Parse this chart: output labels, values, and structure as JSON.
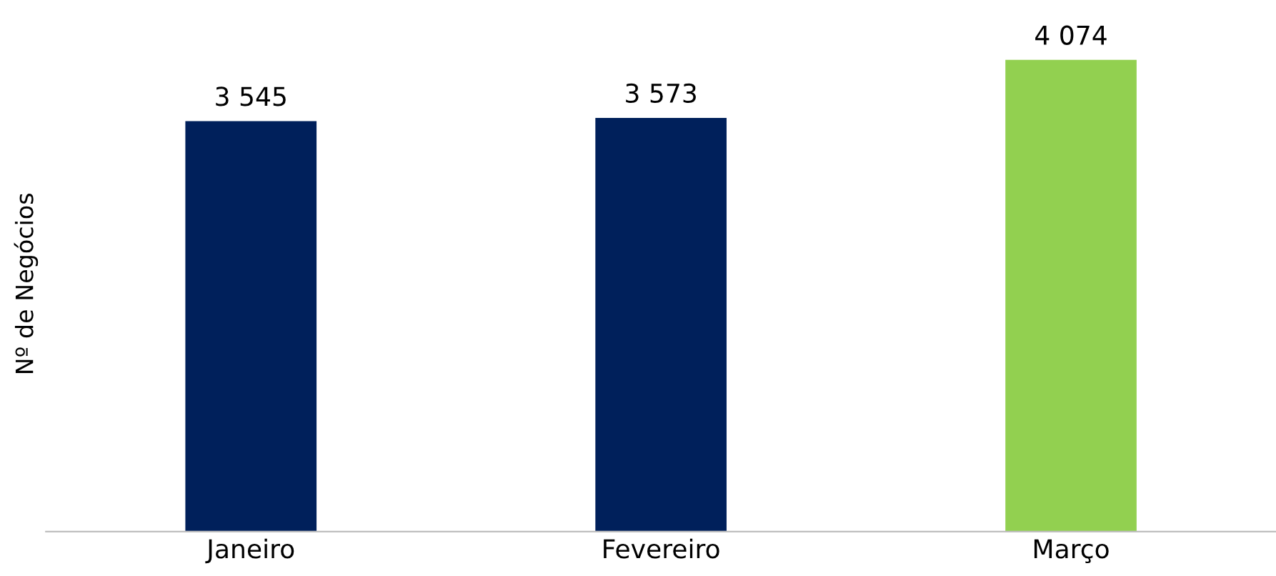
{
  "chart_data": {
    "type": "bar",
    "ylabel": "Nº de Negócios",
    "categories": [
      "Janeiro",
      "Fevereiro",
      "Março"
    ],
    "values": [
      3545,
      3573,
      4074
    ],
    "colors": [
      "#00205b",
      "#00205b",
      "#92d050"
    ],
    "value_labels": [
      "3 545",
      "3 573",
      "4 074"
    ],
    "grid": false,
    "legend": false,
    "tick_labels": "x"
  }
}
